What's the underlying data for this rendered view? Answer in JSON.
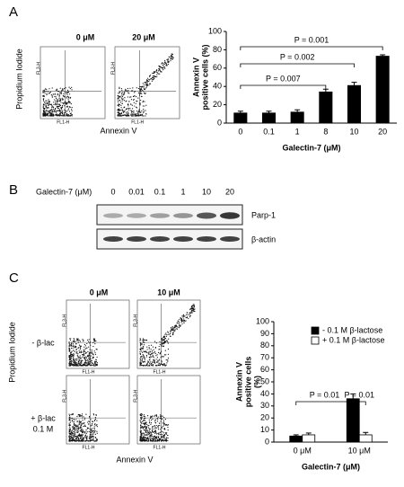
{
  "panel_labels": [
    "A",
    "B",
    "C"
  ],
  "panel_a": {
    "conditions": [
      "0 μM",
      "20 μM"
    ],
    "y_label": "Propidium Iodide",
    "x_label": "Annexin V",
    "plot_y_axis": "FL3-H",
    "plot_x_axis": "FL1-H"
  },
  "panel_b": {
    "treatment_label": "Galectin-7 (μM)",
    "doses": [
      "0",
      "0.01",
      "0.1",
      "1",
      "10",
      "20"
    ],
    "bands": [
      "Parp-1",
      "β-actin"
    ]
  },
  "panel_c": {
    "conditions": [
      "0 μM",
      "10 μM"
    ],
    "rows": [
      "- β-lac",
      "+ β-lac"
    ],
    "row_note": "0.1 M",
    "y_label": "Propidium Iodide",
    "x_label": "Annexin V"
  },
  "chart_data": [
    {
      "type": "bar",
      "y_label": [
        "Annexin V",
        "positive cells (%)"
      ],
      "x_label": "Galectin-7 (μM)",
      "categories": [
        "0",
        "0.1",
        "1",
        "8",
        "10",
        "20"
      ],
      "values": [
        11,
        11,
        12,
        34,
        41,
        73
      ],
      "errors": [
        2,
        2,
        2.5,
        3,
        3.5,
        1.5
      ],
      "color": "#000000",
      "ylim": [
        0,
        100
      ],
      "yticks": [
        0,
        20,
        40,
        60,
        80,
        100
      ],
      "annotations": [
        "P = 0.007",
        "P = 0.002",
        "P = 0.001"
      ]
    },
    {
      "type": "bar",
      "y_label": [
        "Annexin V",
        "positive cells",
        "(%)"
      ],
      "x_label": "Galectin-7 (μM)",
      "categories": [
        "0 μM",
        "10 μM"
      ],
      "series": [
        {
          "name": "- 0.1 M β-lactose",
          "color": "#000000",
          "values": [
            5,
            36
          ],
          "errors": [
            1,
            4
          ]
        },
        {
          "name": "+ 0.1 M β-lactose",
          "color": "#ffffff",
          "values": [
            6,
            6
          ],
          "errors": [
            1.5,
            2
          ]
        }
      ],
      "ylim": [
        0,
        100
      ],
      "yticks": [
        0,
        10,
        20,
        30,
        40,
        50,
        60,
        70,
        80,
        90,
        100
      ],
      "legend": "upper right",
      "annotations": [
        "P = 0.01",
        "P = 0.01"
      ]
    }
  ]
}
